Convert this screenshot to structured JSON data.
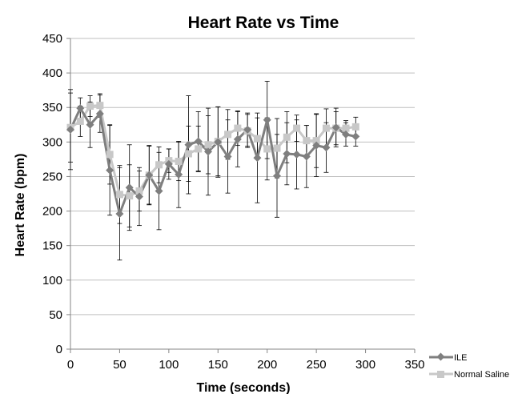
{
  "chart_data": {
    "type": "line",
    "title": "Heart Rate vs Time",
    "xlabel": "Time (seconds)",
    "ylabel": "Heart Rate (bpm)",
    "xlim": [
      0,
      350
    ],
    "ylim": [
      0,
      450
    ],
    "xticks": [
      "0",
      "50",
      "100",
      "150",
      "200",
      "250",
      "300",
      "350"
    ],
    "yticks": [
      "0",
      "50",
      "100",
      "150",
      "200",
      "250",
      "300",
      "350",
      "400",
      "450"
    ],
    "grid": "horizontal",
    "legend_position": "right",
    "x": [
      0,
      10,
      20,
      30,
      40,
      50,
      60,
      70,
      80,
      90,
      100,
      110,
      120,
      130,
      140,
      150,
      160,
      170,
      180,
      190,
      200,
      210,
      220,
      230,
      240,
      250,
      260,
      270,
      280,
      290
    ],
    "series": [
      {
        "name": "ILE",
        "color": "#7f7f7f",
        "marker": "diamond",
        "values": [
          318,
          349,
          325,
          341,
          259,
          196,
          234,
          221,
          252,
          229,
          268,
          253,
          296,
          301,
          286,
          300,
          279,
          304,
          318,
          277,
          332,
          251,
          283,
          282,
          279,
          295,
          292,
          321,
          311,
          308
        ],
        "error": [
          58,
          15,
          33,
          27,
          65,
          67,
          62,
          42,
          42,
          56,
          22,
          48,
          71,
          43,
          63,
          51,
          53,
          40,
          24,
          65,
          56,
          60,
          45,
          50,
          45,
          45,
          36,
          28,
          17,
          14
        ]
      },
      {
        "name": "Normal Saline",
        "color": "#c8c8c8",
        "marker": "square",
        "values": [
          321,
          330,
          352,
          353,
          282,
          224,
          222,
          229,
          252,
          267,
          273,
          272,
          283,
          290,
          296,
          301,
          311,
          320,
          316,
          305,
          290,
          291,
          307,
          320,
          302,
          302,
          320,
          320,
          320,
          322
        ],
        "error": [
          50,
          22,
          15,
          17,
          43,
          42,
          45,
          29,
          43,
          26,
          17,
          28,
          40,
          33,
          42,
          50,
          36,
          25,
          24,
          30,
          45,
          43,
          37,
          19,
          22,
          39,
          28,
          24,
          11,
          14
        ]
      }
    ]
  }
}
